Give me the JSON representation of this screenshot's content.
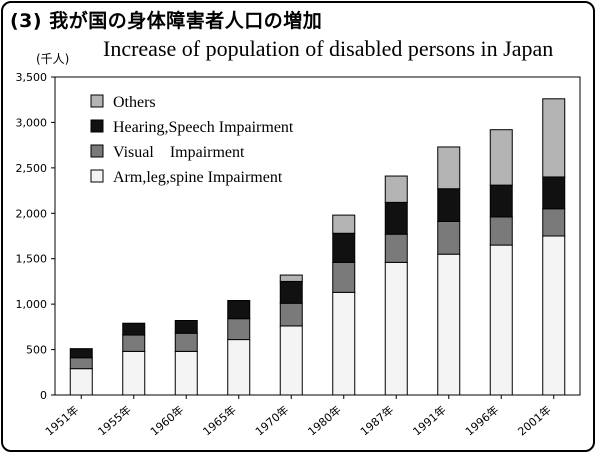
{
  "title": "(3) 我が国の身体障害者人口の増加",
  "subtitle": "Increase of population of disabled persons in Japan",
  "unit_label": "(千人)",
  "colors": {
    "Arm,leg,spine Impairment": "#f4f4f4",
    "Visual　Impairment": "#7a7a7a",
    "Hearing,Speech Impairment": "#111111",
    "Others": "#b4b4b4"
  },
  "chart_data": {
    "type": "bar",
    "stacked": true,
    "ylabel": "(千人)",
    "xlabel": "",
    "ylim": [
      0,
      3500
    ],
    "yticks": [
      "0",
      "500",
      "1,000",
      "1,500",
      "2,000",
      "2,500",
      "3,000",
      "3,500"
    ],
    "categories": [
      "1951年",
      "1955年",
      "1960年",
      "1965年",
      "1970年",
      "1980年",
      "1987年",
      "1991年",
      "1996年",
      "2001年"
    ],
    "series": [
      {
        "name": "Arm,leg,spine Impairment",
        "values": [
          290,
          480,
          480,
          610,
          760,
          1130,
          1460,
          1550,
          1650,
          1750
        ]
      },
      {
        "name": "Visual　Impairment",
        "values": [
          120,
          180,
          200,
          230,
          250,
          330,
          310,
          360,
          310,
          300
        ]
      },
      {
        "name": "Hearing,Speech Impairment",
        "values": [
          100,
          130,
          140,
          200,
          240,
          320,
          350,
          360,
          350,
          350
        ]
      },
      {
        "name": "Others",
        "values": [
          0,
          0,
          0,
          0,
          70,
          200,
          290,
          460,
          610,
          860
        ]
      }
    ],
    "legend": {
      "position": "top-left",
      "order": [
        "Others",
        "Hearing,Speech Impairment",
        "Visual　Impairment",
        "Arm,leg,spine Impairment"
      ]
    },
    "grid": false
  }
}
